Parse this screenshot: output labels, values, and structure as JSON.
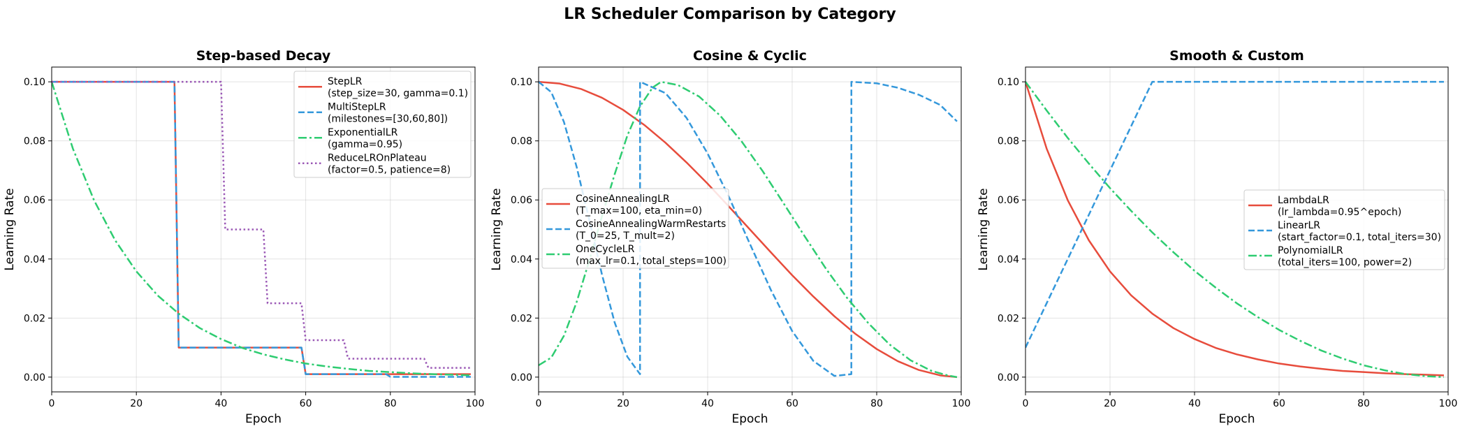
{
  "figure": {
    "suptitle": "LR Scheduler Comparison by Category"
  },
  "chart_data": [
    {
      "type": "line",
      "title": "Step-based Decay",
      "xlabel": "Epoch",
      "ylabel": "Learning Rate",
      "xlim": [
        0,
        100
      ],
      "ylim": [
        -0.005,
        0.105
      ],
      "xticks": [
        0,
        20,
        40,
        60,
        80,
        100
      ],
      "xtick_labels": [
        "0",
        "20",
        "40",
        "60",
        "80",
        "100"
      ],
      "yticks": [
        0,
        0.02,
        0.04,
        0.06,
        0.08,
        0.1
      ],
      "ytick_labels": [
        "0.00",
        "0.02",
        "0.04",
        "0.06",
        "0.08",
        "0.10"
      ],
      "grid": true,
      "legend_position": "top-right",
      "series": [
        {
          "name": "StepLR",
          "params": "(step_size=30, gamma=0.1)",
          "color": "#e74c3c",
          "dash": "solid",
          "x": [
            0,
            29,
            30,
            59,
            60,
            99
          ],
          "y": [
            0.1,
            0.1,
            0.01,
            0.01,
            0.001,
            0.001
          ]
        },
        {
          "name": "MultiStepLR",
          "params": "(milestones=[30,60,80])",
          "color": "#3498db",
          "dash": "dashed",
          "x": [
            0,
            29,
            30,
            59,
            60,
            79,
            80,
            99
          ],
          "y": [
            0.1,
            0.1,
            0.01,
            0.01,
            0.001,
            0.001,
            0.0001,
            0.0001
          ]
        },
        {
          "name": "ExponentialLR",
          "params": "(gamma=0.95)",
          "color": "#2ecc71",
          "dash": "dashdot",
          "x": [
            0,
            5,
            10,
            15,
            20,
            25,
            30,
            35,
            40,
            45,
            50,
            55,
            60,
            65,
            70,
            75,
            80,
            85,
            90,
            95,
            99
          ],
          "y": [
            0.1,
            0.0774,
            0.0599,
            0.0463,
            0.0358,
            0.0277,
            0.0215,
            0.0166,
            0.0129,
            0.0099,
            0.0077,
            0.006,
            0.0046,
            0.0036,
            0.0028,
            0.0021,
            0.0017,
            0.0013,
            0.001,
            0.0008,
            0.0006
          ]
        },
        {
          "name": "ReduceLROnPlateau",
          "params": "(factor=0.5, patience=8)",
          "color": "#9b59b6",
          "dash": "dotted",
          "x": [
            0,
            40,
            41,
            50,
            51,
            59,
            60,
            69,
            70,
            88,
            89,
            99
          ],
          "y": [
            0.1,
            0.1,
            0.05,
            0.05,
            0.025,
            0.025,
            0.0125,
            0.0125,
            0.00625,
            0.00625,
            0.003125,
            0.003125
          ]
        }
      ]
    },
    {
      "type": "line",
      "title": "Cosine & Cyclic",
      "xlabel": "Epoch",
      "ylabel": "Learning Rate",
      "xlim": [
        0,
        100
      ],
      "ylim": [
        -0.005,
        0.105
      ],
      "xticks": [
        0,
        20,
        40,
        60,
        80,
        100
      ],
      "xtick_labels": [
        "0",
        "20",
        "40",
        "60",
        "80",
        "100"
      ],
      "yticks": [
        0,
        0.02,
        0.04,
        0.06,
        0.08,
        0.1
      ],
      "ytick_labels": [
        "0.00",
        "0.02",
        "0.04",
        "0.06",
        "0.08",
        "0.10"
      ],
      "grid": true,
      "legend_position": "center-left",
      "series": [
        {
          "name": "CosineAnnealingLR",
          "params": "(T_max=100, eta_min=0)",
          "color": "#e74c3c",
          "dash": "solid",
          "x": [
            0,
            5,
            10,
            15,
            20,
            25,
            30,
            35,
            40,
            45,
            50,
            55,
            60,
            65,
            70,
            75,
            80,
            85,
            90,
            95,
            99
          ],
          "y": [
            0.1,
            0.0994,
            0.0976,
            0.0946,
            0.0905,
            0.0854,
            0.0794,
            0.0727,
            0.0655,
            0.0578,
            0.05,
            0.0422,
            0.0345,
            0.0273,
            0.0206,
            0.0146,
            0.0095,
            0.0054,
            0.0024,
            0.0006,
            0.0
          ]
        },
        {
          "name": "CosineAnnealingWarmRestarts",
          "params": "(T_0=25, T_mult=2)",
          "color": "#3498db",
          "dash": "dashed",
          "x": [
            0,
            3,
            6,
            9,
            12,
            15,
            18,
            21,
            24,
            24.01,
            30,
            35,
            40,
            45,
            50,
            55,
            60,
            65,
            70,
            74,
            74.01,
            80,
            85,
            90,
            95,
            99
          ],
          "y": [
            0.1,
            0.0965,
            0.0864,
            0.0712,
            0.0532,
            0.0347,
            0.0185,
            0.0069,
            0.001,
            0.1,
            0.0962,
            0.0878,
            0.0757,
            0.0611,
            0.0451,
            0.0294,
            0.0156,
            0.0055,
            0.0004,
            0.001,
            0.1,
            0.0995,
            0.098,
            0.0956,
            0.0922,
            0.0866
          ]
        },
        {
          "name": "OneCycleLR",
          "params": "(max_lr=0.1, total_steps=100)",
          "color": "#2ecc71",
          "dash": "dashdot",
          "x": [
            0,
            3,
            6,
            9,
            12,
            15,
            18,
            21,
            24,
            27,
            29,
            33,
            38,
            43,
            48,
            53,
            58,
            63,
            68,
            73,
            78,
            83,
            88,
            93,
            97,
            99
          ],
          "y": [
            0.004,
            0.0066,
            0.014,
            0.0254,
            0.0395,
            0.0545,
            0.0687,
            0.0818,
            0.0917,
            0.0981,
            0.1,
            0.0989,
            0.095,
            0.0885,
            0.0799,
            0.0698,
            0.0588,
            0.0476,
            0.0367,
            0.0268,
            0.0183,
            0.0111,
            0.0057,
            0.0021,
            0.0005,
            0.0
          ]
        }
      ]
    },
    {
      "type": "line",
      "title": "Smooth & Custom",
      "xlabel": "Epoch",
      "ylabel": "Learning Rate",
      "xlim": [
        0,
        100
      ],
      "ylim": [
        -0.005,
        0.105
      ],
      "xticks": [
        0,
        20,
        40,
        60,
        80,
        100
      ],
      "xtick_labels": [
        "0",
        "20",
        "40",
        "60",
        "80",
        "100"
      ],
      "yticks": [
        0,
        0.02,
        0.04,
        0.06,
        0.08,
        0.1
      ],
      "ytick_labels": [
        "0.00",
        "0.02",
        "0.04",
        "0.06",
        "0.08",
        "0.10"
      ],
      "grid": true,
      "legend_position": "center-right",
      "series": [
        {
          "name": "LambdaLR",
          "params": "(lr_lambda=0.95^epoch)",
          "color": "#e74c3c",
          "dash": "solid",
          "x": [
            0,
            5,
            10,
            15,
            20,
            25,
            30,
            35,
            40,
            45,
            50,
            55,
            60,
            65,
            70,
            75,
            80,
            85,
            90,
            95,
            99
          ],
          "y": [
            0.1,
            0.0774,
            0.0599,
            0.0463,
            0.0358,
            0.0277,
            0.0215,
            0.0166,
            0.0129,
            0.0099,
            0.0077,
            0.006,
            0.0046,
            0.0036,
            0.0028,
            0.0021,
            0.0017,
            0.0013,
            0.001,
            0.0008,
            0.0006
          ]
        },
        {
          "name": "LinearLR",
          "params": "(start_factor=0.1, total_iters=30)",
          "color": "#3498db",
          "dash": "dashed",
          "x": [
            0,
            30,
            99
          ],
          "y": [
            0.01,
            0.1,
            0.1
          ]
        },
        {
          "name": "PolynomialLR",
          "params": "(total_iters=100, power=2)",
          "color": "#2ecc71",
          "dash": "dashdot",
          "x": [
            0,
            5,
            10,
            15,
            20,
            25,
            30,
            35,
            40,
            45,
            50,
            55,
            60,
            65,
            70,
            75,
            80,
            85,
            90,
            95,
            99
          ],
          "y": [
            0.1,
            0.0903,
            0.081,
            0.0723,
            0.064,
            0.0563,
            0.049,
            0.0423,
            0.036,
            0.0303,
            0.025,
            0.0203,
            0.016,
            0.0123,
            0.009,
            0.0063,
            0.004,
            0.0023,
            0.001,
            0.0003,
            0.0
          ]
        }
      ]
    }
  ]
}
